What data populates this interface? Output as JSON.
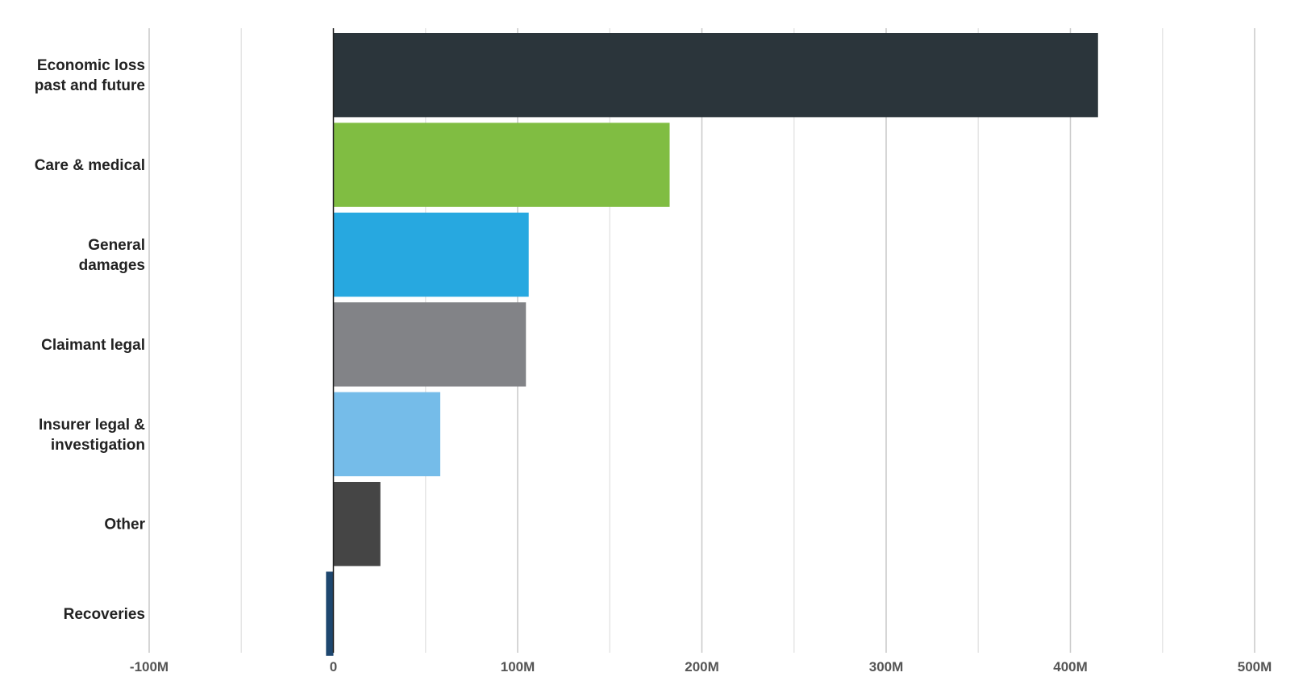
{
  "chart_data": {
    "type": "bar",
    "orientation": "horizontal",
    "categories": [
      [
        "Economic loss",
        "past and future"
      ],
      [
        "Care & medical"
      ],
      [
        "General",
        "damages"
      ],
      [
        "Claimant legal"
      ],
      [
        "Insurer legal &",
        "investigation"
      ],
      [
        "Other"
      ],
      [
        "Recoveries"
      ]
    ],
    "values": [
      415,
      182.5,
      106,
      104.5,
      58,
      25.5,
      -4
    ],
    "value_unit": "M",
    "colors": [
      "#2b353b",
      "#80bd42",
      "#27a8e0",
      "#828387",
      "#75bce9",
      "#454545",
      "#1e476f"
    ],
    "xlim": [
      -100,
      500
    ],
    "major_ticks": [
      -100,
      0,
      100,
      200,
      300,
      400,
      500
    ],
    "minor_ticks": [
      -50,
      50,
      150,
      250,
      350,
      450
    ],
    "tick_labels": [
      "-100M",
      "0",
      "100M",
      "200M",
      "300M",
      "400M",
      "500M"
    ],
    "grid": true,
    "legend": false,
    "title": "",
    "xlabel": "",
    "ylabel": ""
  }
}
